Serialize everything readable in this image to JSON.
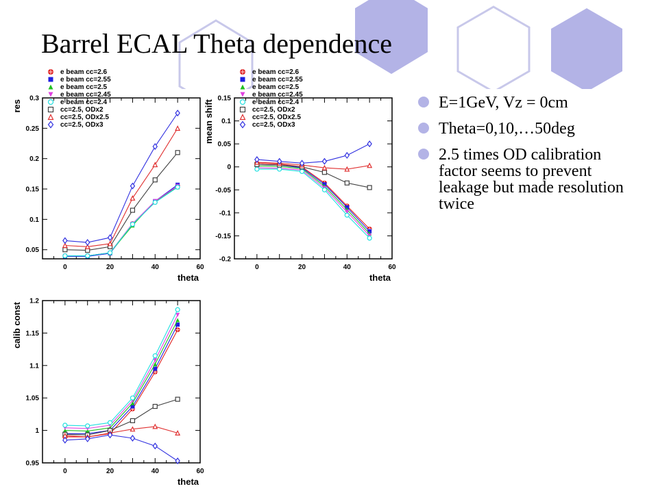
{
  "slide": {
    "title": "Barrel ECAL Theta dependence",
    "accent_color": "#b3b3e6",
    "bullets": [
      "E=1GeV, Vz = 0cm",
      "Theta=0,10,…50deg",
      "2.5 times OD calibration factor seems to prevent leakage but made resolution twice"
    ]
  },
  "legend_entries": [
    {
      "label": "e beam cc=2.6",
      "color": "#e02020",
      "marker": "circle-cross"
    },
    {
      "label": "e beam cc=2.55",
      "color": "#2020e0",
      "marker": "square-filled"
    },
    {
      "label": "e beam cc=2.5",
      "color": "#20c020",
      "marker": "triangle-up-filled"
    },
    {
      "label": "e beam cc=2.45",
      "color": "#e040e0",
      "marker": "triangle-down-filled"
    },
    {
      "label": "e beam cc=2.4",
      "color": "#20e0e0",
      "marker": "circle-open"
    },
    {
      "label": "cc=2.5, ODx2",
      "color": "#404040",
      "marker": "square-open"
    },
    {
      "label": "cc=2.5, ODx2.5",
      "color": "#e03030",
      "marker": "triangle-up-open"
    },
    {
      "label": "cc=2.5, ODx3",
      "color": "#3030e0",
      "marker": "diamond-open"
    }
  ],
  "chart_data": [
    {
      "type": "line",
      "xlabel": "theta",
      "ylabel": "res",
      "xlim": [
        -10,
        60
      ],
      "ylim": [
        0.035,
        0.3
      ],
      "xticks": [
        "0",
        "20",
        "40",
        "60"
      ],
      "yticks": [
        "0.05",
        "0.1",
        "0.15",
        "0.2",
        "0.25",
        "0.3"
      ],
      "x": [
        0,
        10,
        20,
        30,
        40,
        50
      ],
      "legend": "top-left",
      "series": [
        {
          "name": "e beam cc=2.6",
          "values": [
            0.04,
            0.04,
            0.045,
            0.093,
            0.128,
            0.155
          ]
        },
        {
          "name": "e beam cc=2.55",
          "values": [
            0.039,
            0.039,
            0.044,
            0.092,
            0.13,
            0.157
          ]
        },
        {
          "name": "e beam cc=2.5",
          "values": [
            0.04,
            0.04,
            0.045,
            0.09,
            0.13,
            0.153
          ]
        },
        {
          "name": "e beam cc=2.45",
          "values": [
            0.04,
            0.04,
            0.045,
            0.093,
            0.13,
            0.155
          ]
        },
        {
          "name": "e beam cc=2.4",
          "values": [
            0.04,
            0.04,
            0.045,
            0.092,
            0.128,
            0.153
          ]
        },
        {
          "name": "cc=2.5, ODx2",
          "values": [
            0.05,
            0.049,
            0.055,
            0.115,
            0.165,
            0.21
          ]
        },
        {
          "name": "cc=2.5, ODx2.5",
          "values": [
            0.057,
            0.055,
            0.06,
            0.135,
            0.19,
            0.25
          ]
        },
        {
          "name": "cc=2.5, ODx3",
          "values": [
            0.065,
            0.062,
            0.07,
            0.155,
            0.22,
            0.275
          ]
        }
      ]
    },
    {
      "type": "line",
      "xlabel": "theta",
      "ylabel": "mean shift",
      "xlim": [
        -10,
        60
      ],
      "ylim": [
        -0.2,
        0.15
      ],
      "xticks": [
        "0",
        "20",
        "40",
        "60"
      ],
      "yticks": [
        "-0.2",
        "-0.15",
        "-0.1",
        "-0.05",
        "0",
        "0.05",
        "0.1",
        "0.15"
      ],
      "x": [
        0,
        10,
        20,
        30,
        40,
        50
      ],
      "legend": "top-left",
      "series": [
        {
          "name": "e beam cc=2.6",
          "values": [
            0.008,
            0.006,
            0.0,
            -0.035,
            -0.085,
            -0.135
          ]
        },
        {
          "name": "e beam cc=2.55",
          "values": [
            0.005,
            0.004,
            -0.002,
            -0.038,
            -0.088,
            -0.14
          ]
        },
        {
          "name": "e beam cc=2.5",
          "values": [
            0.002,
            0.001,
            -0.004,
            -0.042,
            -0.093,
            -0.145
          ]
        },
        {
          "name": "e beam cc=2.45",
          "values": [
            -0.002,
            -0.003,
            -0.007,
            -0.046,
            -0.098,
            -0.15
          ]
        },
        {
          "name": "e beam cc=2.4",
          "values": [
            -0.005,
            -0.005,
            -0.01,
            -0.05,
            -0.105,
            -0.155
          ]
        },
        {
          "name": "cc=2.5, ODx2",
          "values": [
            0.005,
            0.004,
            0.0,
            -0.012,
            -0.035,
            -0.045
          ]
        },
        {
          "name": "cc=2.5, ODx2.5",
          "values": [
            0.01,
            0.008,
            0.004,
            -0.002,
            -0.005,
            0.003
          ]
        },
        {
          "name": "cc=2.5, ODx3",
          "values": [
            0.016,
            0.012,
            0.008,
            0.012,
            0.025,
            0.05
          ]
        }
      ]
    },
    {
      "type": "line",
      "xlabel": "theta",
      "ylabel": "calib const",
      "xlim": [
        -10,
        60
      ],
      "ylim": [
        0.95,
        1.2
      ],
      "xticks": [
        "0",
        "20",
        "40",
        "60"
      ],
      "yticks": [
        "0.95",
        "1",
        "1.05",
        "1.1",
        "1.15",
        "1.2"
      ],
      "x": [
        0,
        10,
        20,
        30,
        40,
        50
      ],
      "legend": "none",
      "series": [
        {
          "name": "e beam cc=2.6",
          "values": [
            0.99,
            0.99,
            0.995,
            1.033,
            1.09,
            1.155
          ]
        },
        {
          "name": "e beam cc=2.55",
          "values": [
            0.995,
            0.995,
            1.0,
            1.037,
            1.095,
            1.163
          ]
        },
        {
          "name": "e beam cc=2.5",
          "values": [
            1.0,
            0.999,
            1.004,
            1.042,
            1.102,
            1.17
          ]
        },
        {
          "name": "e beam cc=2.45",
          "values": [
            1.004,
            1.003,
            1.008,
            1.046,
            1.108,
            1.178
          ]
        },
        {
          "name": "e beam cc=2.4",
          "values": [
            1.008,
            1.007,
            1.012,
            1.05,
            1.115,
            1.186
          ]
        },
        {
          "name": "cc=2.5, ODx2",
          "values": [
            0.994,
            0.993,
            1.0,
            1.015,
            1.037,
            1.048
          ]
        },
        {
          "name": "cc=2.5, ODx2.5",
          "values": [
            0.992,
            0.99,
            0.996,
            1.002,
            1.006,
            0.996
          ]
        },
        {
          "name": "cc=2.5, ODx3",
          "values": [
            0.985,
            0.987,
            0.993,
            0.988,
            0.976,
            0.953
          ]
        }
      ]
    }
  ]
}
